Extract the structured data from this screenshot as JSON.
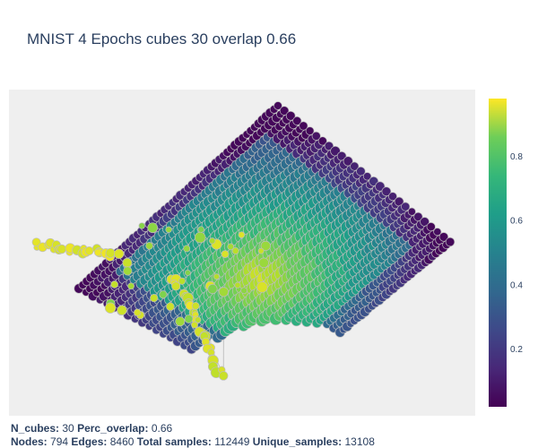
{
  "chart_data": {
    "type": "scatter",
    "title": "MNIST 4 Epochs cubes 30 overlap 0.66",
    "colorscale": "Viridis",
    "colorbar": {
      "range": [
        0.02,
        0.98
      ],
      "ticks": [
        "0.2",
        "0.4",
        "0.6",
        "0.8"
      ],
      "tick_values": [
        0.2,
        0.4,
        0.6,
        0.8
      ]
    },
    "background": "#efefef",
    "edge_color": "#bdbdbd",
    "node_outline": "#bdbdbd",
    "xaxis_visible": false,
    "yaxis_visible": false
  },
  "footer": {
    "line1": [
      {
        "label": "N_cubes:",
        "value": "30"
      },
      {
        "label": "Perc_overlap:",
        "value": "0.66"
      }
    ],
    "line2": [
      {
        "label": "Nodes:",
        "value": "794"
      },
      {
        "label": "Edges:",
        "value": "8460"
      },
      {
        "label": "Total samples:",
        "value": "112449"
      },
      {
        "label": "Unique_samples:",
        "value": "13108"
      }
    ]
  }
}
